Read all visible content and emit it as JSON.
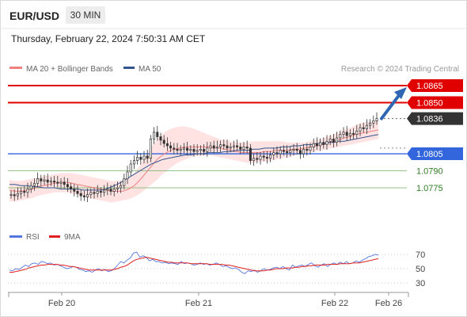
{
  "header": {
    "symbol": "EUR/USD",
    "timeframe": "30 MIN",
    "timestamp": "Thursday, February 22, 2024 7:50:31 AM CET"
  },
  "legend": {
    "ma20": "MA 20 + Bollinger Bands",
    "ma50": "MA 50",
    "copyright": "Research © 2024 Trading Central"
  },
  "rsi_legend": {
    "rsi": "RSI",
    "ma": "9MA"
  },
  "colors": {
    "resistance": "#e00000",
    "pivot": "#3366dd",
    "support": "#66aa55",
    "current": "#333333",
    "ma20": "#f08080",
    "ma50": "#33558f",
    "bands": "#ffd9d9",
    "rsi": "#5577dd",
    "rsi_ma": "#e02020",
    "arrow": "#2f66b3"
  },
  "levels": [
    {
      "name": "resistance-2",
      "value": 1.0865,
      "label": "1.0865",
      "kind": "resistance"
    },
    {
      "name": "resistance-1",
      "value": 1.085,
      "label": "1.0850",
      "kind": "resistance"
    },
    {
      "name": "current-price",
      "value": 1.0836,
      "label": "1.0836",
      "kind": "current"
    },
    {
      "name": "pivot",
      "value": 1.0805,
      "label": "1.0805",
      "kind": "pivot"
    },
    {
      "name": "support-1",
      "value": 1.079,
      "label": "1.0790",
      "kind": "support"
    },
    {
      "name": "support-2",
      "value": 1.0775,
      "label": "1.0775",
      "kind": "support"
    }
  ],
  "chart_data": {
    "type": "candlestick",
    "x_labels": [
      "Feb 20",
      "Feb 21",
      "Feb 22",
      "Feb 26"
    ],
    "ylim": [
      1.0752,
      1.0872
    ],
    "close": [
      1.0769,
      1.0768,
      1.077,
      1.0772,
      1.0771,
      1.0774,
      1.0777,
      1.0779,
      1.0783,
      1.0781,
      1.0782,
      1.078,
      1.0781,
      1.078,
      1.0779,
      1.078,
      1.0778,
      1.0776,
      1.0774,
      1.0772,
      1.077,
      1.0768,
      1.0767,
      1.0769,
      1.0771,
      1.077,
      1.0772,
      1.0771,
      1.0773,
      1.0774,
      1.0772,
      1.0774,
      1.0775,
      1.0777,
      1.0783,
      1.0789,
      1.0796,
      1.0799,
      1.0802,
      1.08,
      1.0803,
      1.0801,
      1.0818,
      1.0824,
      1.082,
      1.0817,
      1.0814,
      1.0812,
      1.081,
      1.0809,
      1.0808,
      1.0809,
      1.081,
      1.0808,
      1.0809,
      1.0807,
      1.0808,
      1.0809,
      1.0807,
      1.081,
      1.0812,
      1.081,
      1.0811,
      1.0813,
      1.0812,
      1.081,
      1.0811,
      1.0812,
      1.0811,
      1.0809,
      1.0811,
      1.081,
      1.0799,
      1.0801,
      1.08,
      1.0803,
      1.0802,
      1.0801,
      1.0804,
      1.0806,
      1.0805,
      1.0808,
      1.0807,
      1.0806,
      1.0808,
      1.0809,
      1.0808,
      1.0805,
      1.0809,
      1.0808,
      1.0811,
      1.0814,
      1.0812,
      1.0815,
      1.0813,
      1.0816,
      1.0818,
      1.0815,
      1.0819,
      1.0822,
      1.0824,
      1.0821,
      1.0823,
      1.0822,
      1.0825,
      1.0828,
      1.0827,
      1.083,
      1.0832,
      1.0834,
      1.0836
    ],
    "bollinger_upper": [
      1.0782,
      1.0781,
      1.0781,
      1.0782,
      1.0783,
      1.0784,
      1.0785,
      1.0786,
      1.0787,
      1.0788,
      1.0788,
      1.0788,
      1.0787,
      1.0786,
      1.0785,
      1.0784,
      1.0783,
      1.0782,
      1.0781,
      1.0781,
      1.0782,
      1.0784,
      1.0788,
      1.0795,
      1.0803,
      1.0811,
      1.0818,
      1.0823,
      1.0826,
      1.0828,
      1.0829,
      1.0829,
      1.0828,
      1.0826,
      1.0824,
      1.0822,
      1.082,
      1.0818,
      1.0817,
      1.0816,
      1.0815,
      1.0815,
      1.0815,
      1.0816,
      1.0816,
      1.0816,
      1.0816,
      1.0816,
      1.0816,
      1.0815,
      1.0815,
      1.0815,
      1.0815,
      1.0816,
      1.0817,
      1.0818,
      1.082,
      1.0822,
      1.0824,
      1.0826,
      1.0828,
      1.083,
      1.0832,
      1.0833,
      1.0834,
      1.0835
    ],
    "bollinger_lower": [
      1.0763,
      1.0763,
      1.0764,
      1.0765,
      1.0766,
      1.0768,
      1.0769,
      1.077,
      1.0771,
      1.0771,
      1.0771,
      1.077,
      1.0769,
      1.0767,
      1.0766,
      1.0765,
      1.0764,
      1.0763,
      1.0762,
      1.0763,
      1.0764,
      1.0765,
      1.0767,
      1.077,
      1.0774,
      1.0778,
      1.0782,
      1.0787,
      1.0791,
      1.0795,
      1.0798,
      1.08,
      1.0802,
      1.0803,
      1.0803,
      1.0804,
      1.0803,
      1.0802,
      1.0801,
      1.08,
      1.0799,
      1.0798,
      1.0797,
      1.0797,
      1.0798,
      1.0798,
      1.0799,
      1.08,
      1.0801,
      1.0802,
      1.0803,
      1.0804,
      1.0805,
      1.0806,
      1.0807,
      1.0808,
      1.0809,
      1.081,
      1.0811,
      1.0812,
      1.0813,
      1.0814,
      1.0815,
      1.0816,
      1.0817,
      1.0818
    ],
    "ma20": [
      1.0773,
      1.0772,
      1.0772,
      1.0773,
      1.0774,
      1.0776,
      1.0777,
      1.0778,
      1.0779,
      1.078,
      1.078,
      1.0779,
      1.0778,
      1.0777,
      1.0776,
      1.0775,
      1.0774,
      1.0773,
      1.0772,
      1.0772,
      1.0772,
      1.0774,
      1.0777,
      1.0782,
      1.0788,
      1.0794,
      1.08,
      1.0804,
      1.0807,
      1.0809,
      1.081,
      1.0811,
      1.0811,
      1.0811,
      1.0811,
      1.0811,
      1.081,
      1.081,
      1.0809,
      1.0808,
      1.0807,
      1.0806,
      1.0806,
      1.0806,
      1.0806,
      1.0807,
      1.0807,
      1.0808,
      1.0808,
      1.0808,
      1.0809,
      1.0809,
      1.081,
      1.0811,
      1.0812,
      1.0813,
      1.0814,
      1.0816,
      1.0817,
      1.0819,
      1.082,
      1.0822,
      1.0823,
      1.0824,
      1.0825,
      1.0826
    ],
    "ma50": [
      1.0778,
      1.0778,
      1.0777,
      1.0777,
      1.0776,
      1.0776,
      1.0775,
      1.0775,
      1.0775,
      1.0774,
      1.0774,
      1.0774,
      1.0774,
      1.0773,
      1.0773,
      1.0773,
      1.0773,
      1.0774,
      1.0776,
      1.0778,
      1.0781,
      1.0784,
      1.0787,
      1.079,
      1.0793,
      1.0796,
      1.0798,
      1.08,
      1.0801,
      1.0802,
      1.0803,
      1.0804,
      1.0804,
      1.0805,
      1.0805,
      1.0806,
      1.0806,
      1.0806,
      1.0807,
      1.0807,
      1.0808,
      1.0808,
      1.0808,
      1.0809,
      1.0809,
      1.081,
      1.081,
      1.081,
      1.0811,
      1.0811,
      1.0812,
      1.0812,
      1.0813,
      1.0813,
      1.0814,
      1.0814,
      1.0815,
      1.0815,
      1.0816,
      1.0816,
      1.0817,
      1.0818,
      1.0819,
      1.082,
      1.0821,
      1.0822
    ],
    "projection": {
      "from": 1.0836,
      "to": 1.0865
    },
    "rsi": {
      "ylim": [
        20,
        80
      ],
      "ticks": [
        70,
        50,
        30
      ],
      "rsi": [
        48,
        47,
        50,
        49,
        52,
        55,
        53,
        57,
        58,
        56,
        60,
        59,
        57,
        58,
        55,
        56,
        54,
        52,
        50,
        51,
        53,
        52,
        49,
        48,
        46,
        47,
        45,
        48,
        50,
        47,
        49,
        46,
        47,
        50,
        55,
        60,
        58,
        62,
        65,
        72,
        73,
        66,
        68,
        66,
        61,
        63,
        60,
        60,
        58,
        59,
        57,
        58,
        57,
        56,
        60,
        57,
        58,
        57,
        55,
        56,
        58,
        56,
        57,
        55,
        56,
        58,
        56,
        53,
        54,
        52,
        50,
        51,
        49,
        45,
        43,
        47,
        46,
        48,
        45,
        47,
        50,
        48,
        49,
        51,
        52,
        50,
        53,
        50,
        48,
        55,
        52,
        54,
        55,
        53,
        56,
        58,
        54,
        52,
        55,
        57,
        53,
        56,
        58,
        56,
        59,
        57,
        60,
        57,
        58,
        61,
        59,
        62,
        64,
        67,
        68,
        70,
        69
      ],
      "rsi_ma": [
        45,
        45,
        46,
        47,
        48,
        49,
        51,
        52,
        53,
        54,
        55,
        55,
        56,
        56,
        56,
        56,
        55,
        55,
        54,
        53,
        53,
        52,
        51,
        50,
        49,
        48,
        48,
        48,
        48,
        48,
        48,
        48,
        48,
        49,
        50,
        52,
        53,
        55,
        58,
        61,
        63,
        64,
        65,
        66,
        65,
        64,
        63,
        62,
        61,
        60,
        59,
        59,
        58,
        58,
        58,
        58,
        58,
        57,
        57,
        57,
        57,
        57,
        57,
        56,
        56,
        56,
        56,
        56,
        55,
        55,
        54,
        53,
        52,
        51,
        50,
        49,
        48,
        47,
        47,
        47,
        47,
        48,
        48,
        49,
        50,
        50,
        50,
        51,
        51,
        51,
        52,
        52,
        53,
        53,
        54,
        54,
        55,
        55,
        55,
        55,
        56,
        56,
        56,
        56,
        57,
        57,
        57,
        57,
        58,
        58,
        58,
        59,
        60,
        61,
        62,
        63,
        64
      ]
    }
  }
}
